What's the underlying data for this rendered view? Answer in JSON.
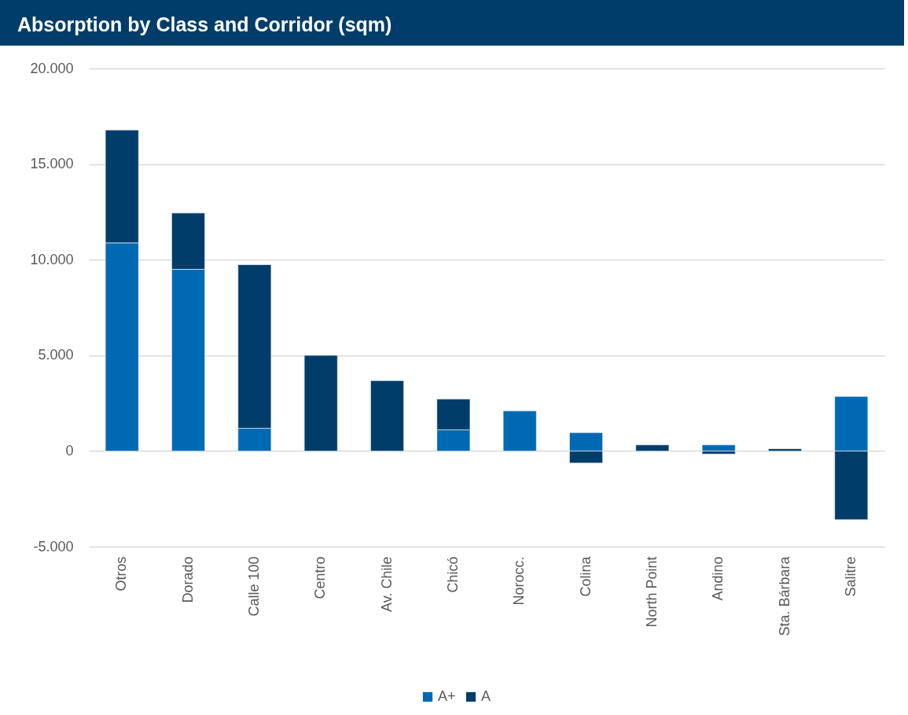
{
  "chart_data": {
    "type": "bar",
    "title": "Absorption by Class and Corridor (sqm)",
    "categories": [
      "Otros",
      "Dorado",
      "Calle 100",
      "Centro",
      "Av. Chile",
      "Chicó",
      "Norocc.",
      "Colina",
      "North Point",
      "Andino",
      "Sta. Bárbara",
      "Salitre"
    ],
    "series": [
      {
        "name": "A+",
        "color": "#0069b4",
        "values": [
          10880,
          9500,
          1190,
          null,
          null,
          1110,
          2100,
          960,
          null,
          320,
          null,
          2850
        ]
      },
      {
        "name": "A",
        "color": "#003d6b",
        "values": [
          5900,
          2940,
          8550,
          5000,
          3680,
          1610,
          null,
          -630,
          320,
          -160,
          120,
          -3590
        ]
      }
    ],
    "stacked": true,
    "ylim": [
      -5000,
      20000
    ],
    "yticks": [
      {
        "value": -5000,
        "label": "-5.000"
      },
      {
        "value": 0,
        "label": "0"
      },
      {
        "value": 5000,
        "label": "5.000"
      },
      {
        "value": 10000,
        "label": "10.000"
      },
      {
        "value": 15000,
        "label": "15.000"
      },
      {
        "value": 20000,
        "label": "20.000"
      }
    ],
    "grid": "y",
    "legend": "bottom"
  }
}
